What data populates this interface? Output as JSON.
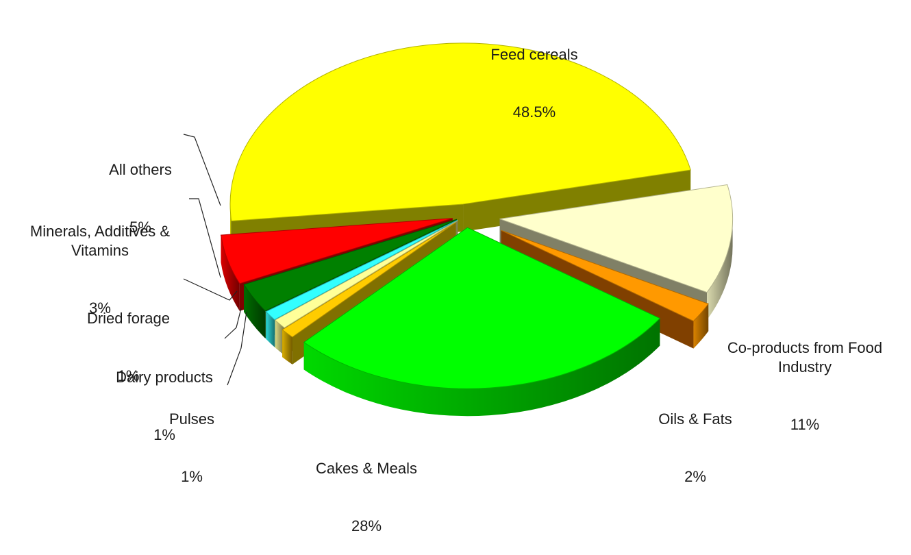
{
  "colors": {
    "Feed cereals": "#ffff00",
    "Co-products from Food Industry": "#ffffcc",
    "Oils & Fats": "#ff9900",
    "Cakes & Meals": "#00ff00",
    "Pulses": "#ffcc00",
    "Dairy products": "#ffff99",
    "Dried forage": "#33ffff",
    "Minerals, Additives & Vitamins": "#008000",
    "All others": "#ff0000"
  },
  "chart_data": {
    "type": "pie",
    "categories": [
      "Feed cereals",
      "Co-products from Food Industry",
      "Oils & Fats",
      "Cakes & Meals",
      "Pulses",
      "Dairy products",
      "Dried forage",
      "Minerals, Additives & Vitamins",
      "All others"
    ],
    "values": [
      48.5,
      11,
      2,
      28,
      1,
      1,
      1,
      3,
      5
    ],
    "labels": [
      {
        "name": "Feed cereals",
        "value_text": "48.5%"
      },
      {
        "name": "Co-products from Food\nIndustry",
        "value_text": "11%"
      },
      {
        "name": "Oils & Fats",
        "value_text": "2%"
      },
      {
        "name": "Cakes & Meals",
        "value_text": "28%"
      },
      {
        "name": "Pulses",
        "value_text": "1%"
      },
      {
        "name": "Dairy products",
        "value_text": "1%"
      },
      {
        "name": "Dried forage",
        "value_text": "1%"
      },
      {
        "name": "Minerals, Additives &\nVitamins",
        "value_text": "3%"
      },
      {
        "name": "All others",
        "value_text": "5%"
      }
    ],
    "legend": "none",
    "style": "3d-exploded"
  }
}
